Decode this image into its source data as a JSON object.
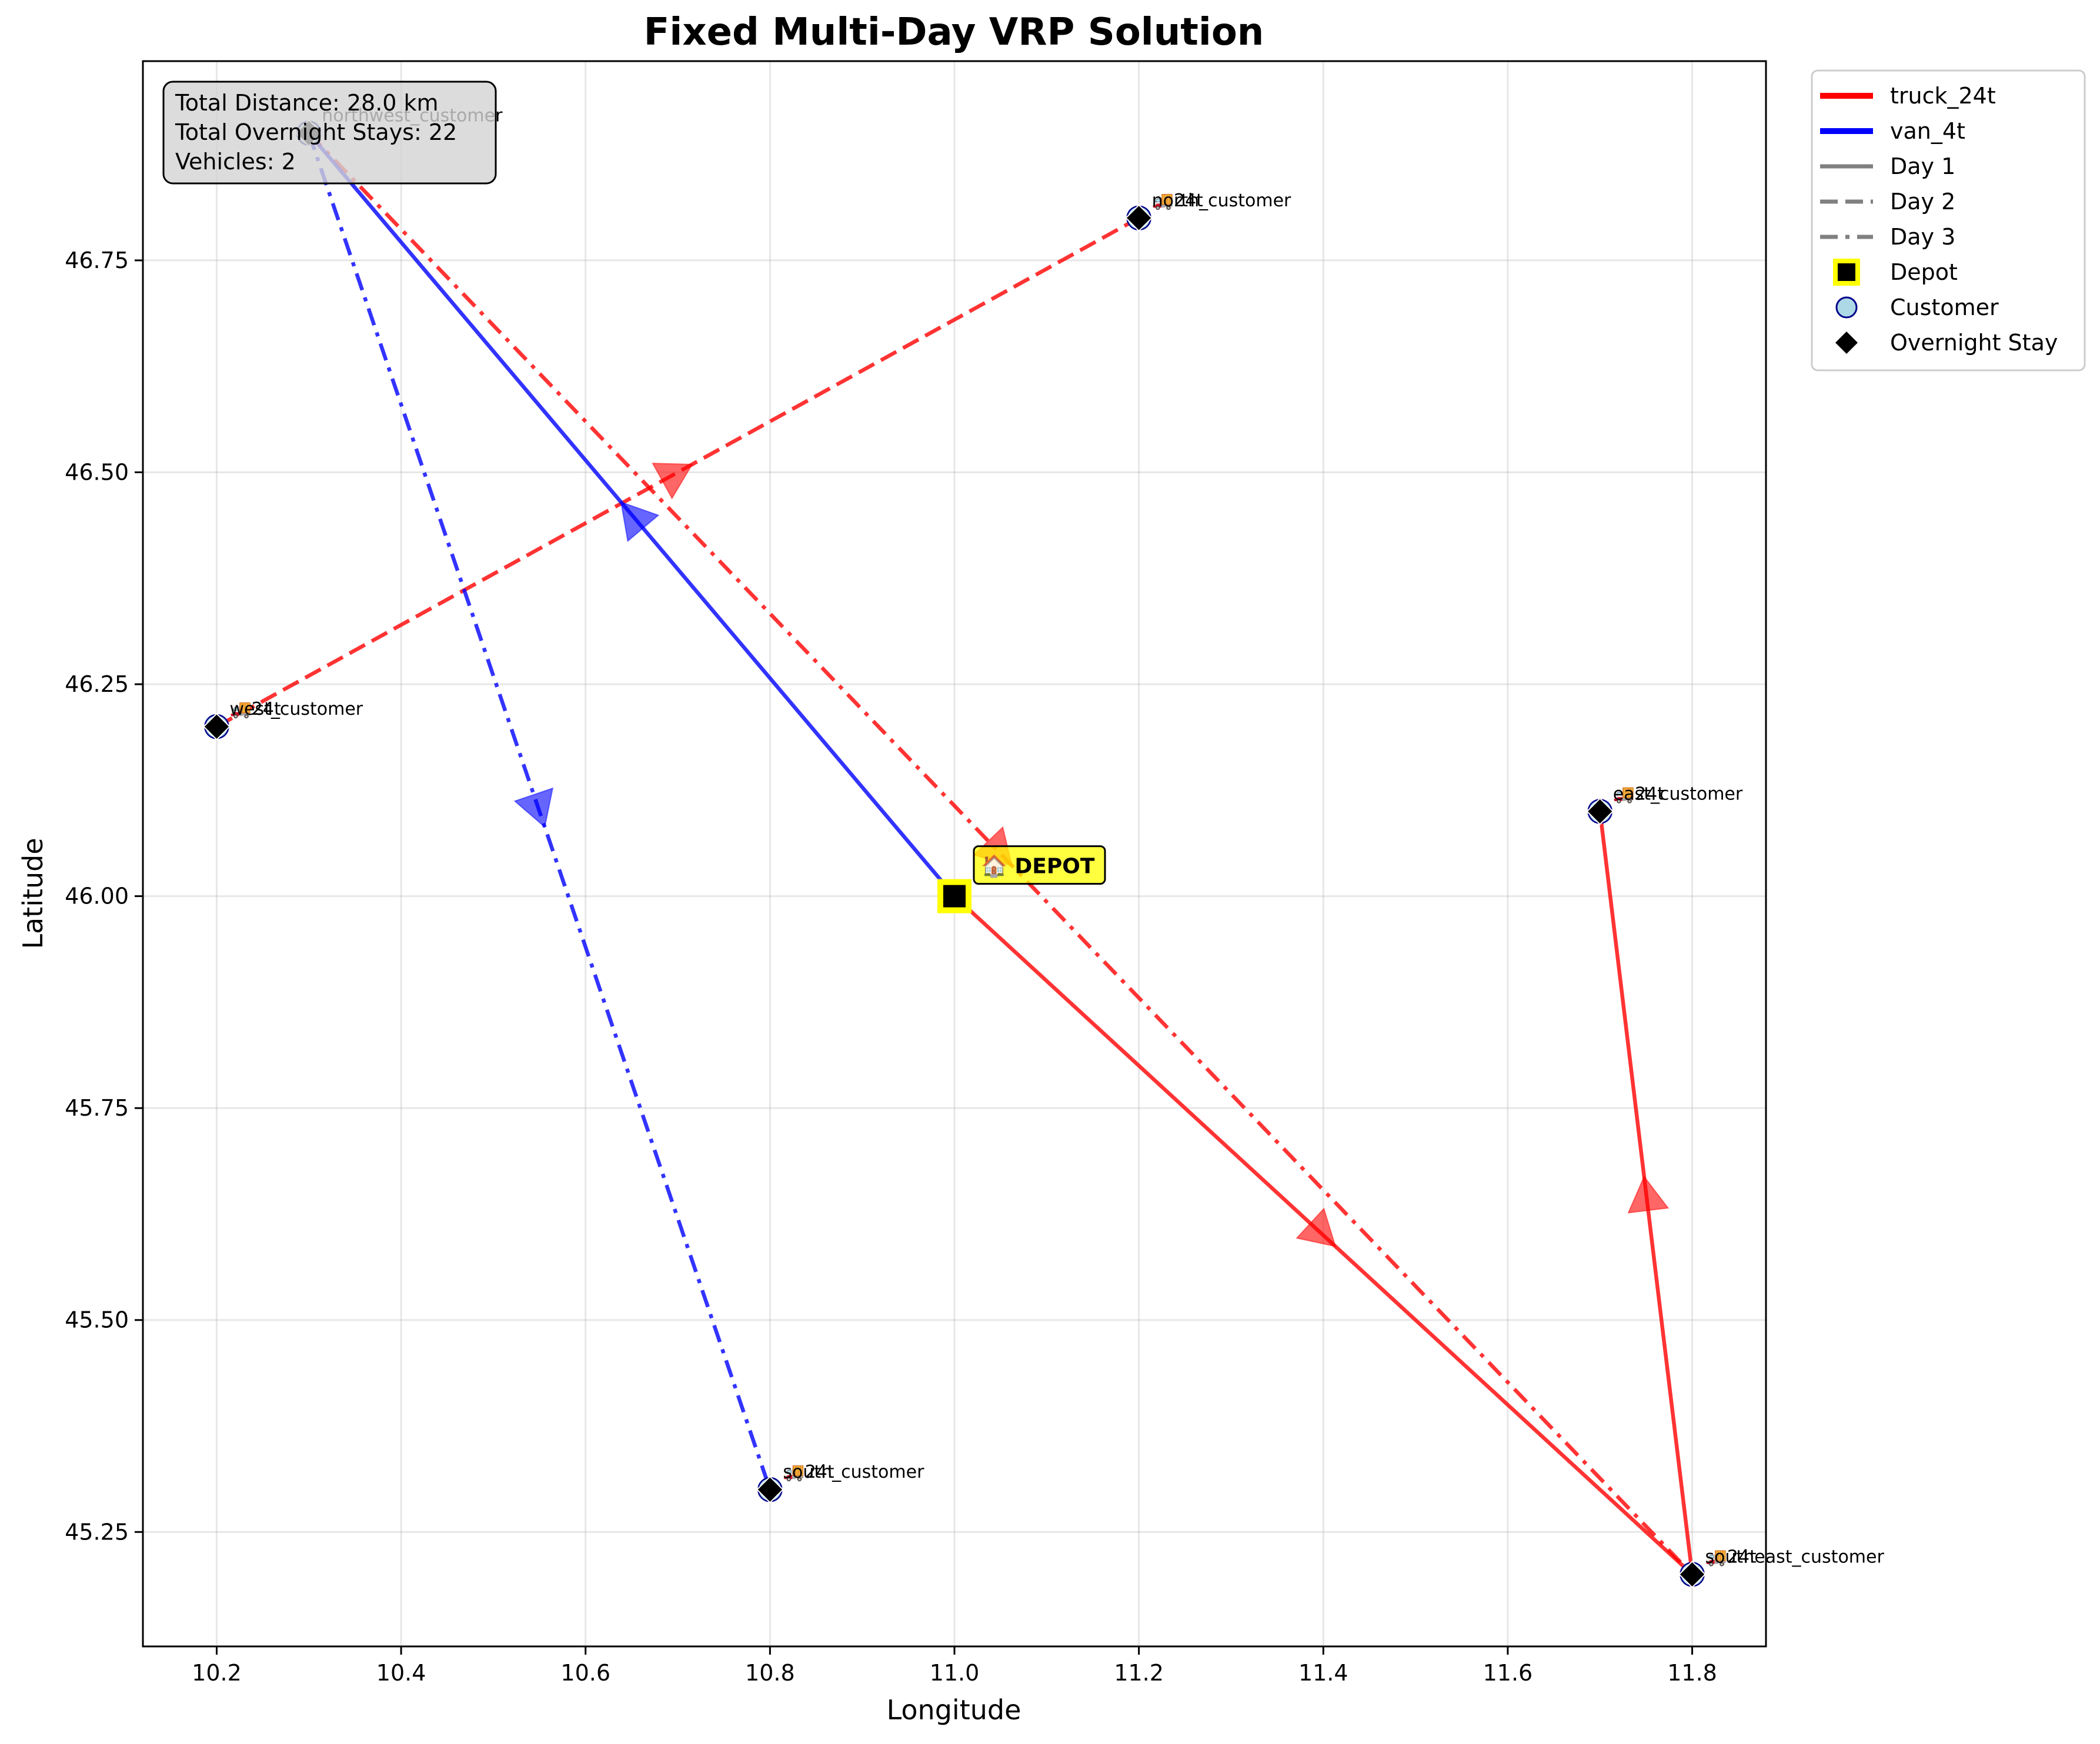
{
  "chart_data": {
    "type": "line",
    "title": "Fixed Multi-Day VRP Solution",
    "xlabel": "Longitude",
    "ylabel": "Latitude",
    "xlim": [
      10.12,
      11.88
    ],
    "ylim": [
      45.115,
      46.985
    ],
    "xticks": [
      "10.2",
      "10.4",
      "10.6",
      "10.8",
      "11.0",
      "11.2",
      "11.4",
      "11.6",
      "11.8"
    ],
    "xtick_values": [
      10.2,
      10.4,
      10.6,
      10.8,
      11.0,
      11.2,
      11.4,
      11.6,
      11.8
    ],
    "yticks": [
      "45.25",
      "45.50",
      "45.75",
      "46.00",
      "46.25",
      "46.50",
      "46.75"
    ],
    "ytick_values": [
      45.25,
      45.5,
      45.75,
      46.0,
      46.25,
      46.5,
      46.75
    ],
    "grid": true,
    "legend_position": "outside top-right",
    "colors": {
      "truck_24t": "#ff0000",
      "van_4t": "#0000ff",
      "depot_fill": "#ffff00"
    },
    "info_box": [
      "Total Distance: 28.0 km",
      "Total Overnight Stays: 22",
      "Vehicles: 2"
    ],
    "depot": {
      "x": 11.0,
      "y": 46.0,
      "label": "🏠 DEPOT"
    },
    "locations": [
      {
        "x": 10.3,
        "y": 46.9,
        "labels": [
          "northwest_customer"
        ]
      },
      {
        "x": 11.2,
        "y": 46.8,
        "labels": [
          "🚚24t",
          "north_customer"
        ]
      },
      {
        "x": 10.2,
        "y": 46.2,
        "labels": [
          "🚚24t",
          "west_customer"
        ]
      },
      {
        "x": 11.7,
        "y": 46.1,
        "labels": [
          "🚚24t",
          "east_customer"
        ]
      },
      {
        "x": 10.8,
        "y": 45.3,
        "labels": [
          "🚚24t",
          "south_customer"
        ]
      },
      {
        "x": 11.8,
        "y": 45.2,
        "labels": [
          "🚚24t",
          "southeast_customer"
        ]
      }
    ],
    "routes": [
      {
        "vehicle": "truck_24t",
        "day": 1,
        "points": [
          [
            11.0,
            46.0
          ],
          [
            11.8,
            45.2
          ],
          [
            11.7,
            46.1
          ]
        ]
      },
      {
        "vehicle": "truck_24t",
        "day": 2,
        "points": [
          [
            10.2,
            46.2
          ],
          [
            11.2,
            46.8
          ]
        ]
      },
      {
        "vehicle": "truck_24t",
        "day": 3,
        "points": [
          [
            10.3,
            46.9
          ],
          [
            11.8,
            45.2
          ]
        ]
      },
      {
        "vehicle": "van_4t",
        "day": 1,
        "points": [
          [
            11.0,
            46.0
          ],
          [
            10.3,
            46.9
          ]
        ]
      },
      {
        "vehicle": "van_4t",
        "day": 3,
        "points": [
          [
            10.3,
            46.9
          ],
          [
            10.8,
            45.3
          ]
        ]
      }
    ],
    "legend": [
      {
        "label": "truck_24t",
        "kind": "line",
        "color": "#ff0000",
        "dash": "solid"
      },
      {
        "label": "van_4t",
        "kind": "line",
        "color": "#0000ff",
        "dash": "solid"
      },
      {
        "label": "Day 1",
        "kind": "line",
        "color": "#808080",
        "dash": "solid"
      },
      {
        "label": "Day 2",
        "kind": "line",
        "color": "#808080",
        "dash": "dashed"
      },
      {
        "label": "Day 3",
        "kind": "line",
        "color": "#808080",
        "dash": "dashdot"
      },
      {
        "label": "Depot",
        "kind": "depot"
      },
      {
        "label": "Customer",
        "kind": "customer"
      },
      {
        "label": "Overnight Stay",
        "kind": "overnight"
      }
    ]
  }
}
